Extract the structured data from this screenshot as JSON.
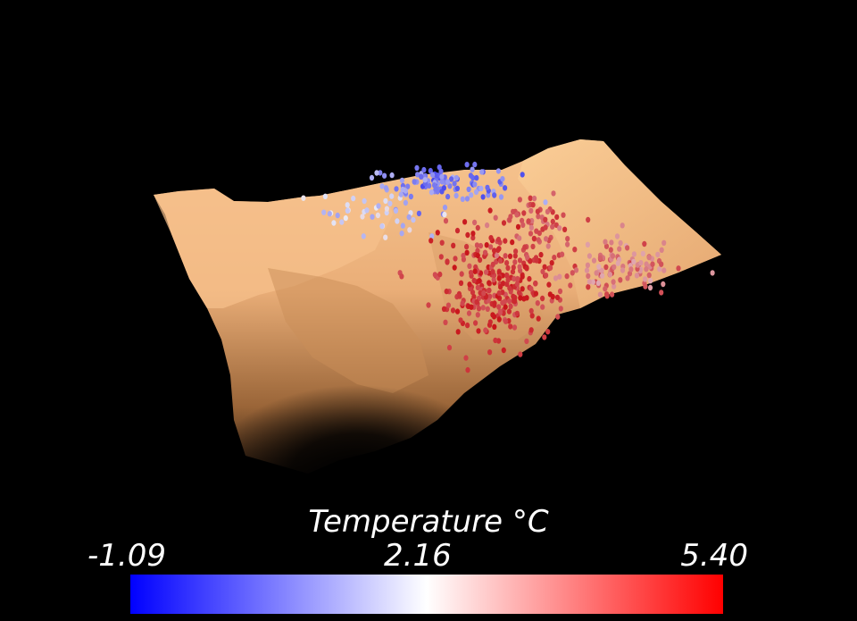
{
  "scene": {
    "background": "#000000",
    "surface_color": "#f2b57f",
    "surface_shadow": "#8a5a34",
    "icons": [
      "terrain-surface",
      "scatter-particles"
    ]
  },
  "colorbar": {
    "title": "Temperature °C",
    "min_label": "-1.09",
    "mid_label": "2.16",
    "max_label": "5.40",
    "min": -1.09,
    "mid": 2.16,
    "max": 5.4,
    "colors": [
      "#0000ff",
      "#ffffff",
      "#ff0000"
    ]
  }
}
